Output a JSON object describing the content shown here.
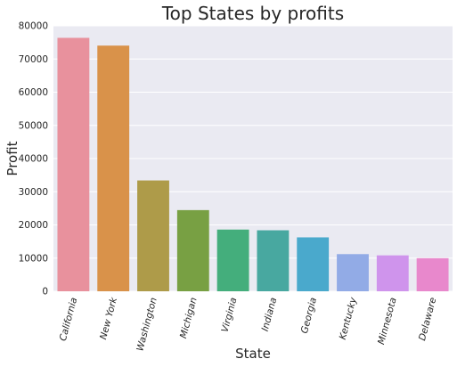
{
  "chart_data": {
    "type": "bar",
    "title": "Top States by profits",
    "xlabel": "State",
    "ylabel": "Profit",
    "categories": [
      "California",
      "New York",
      "Washington",
      "Michigan",
      "Virginia",
      "Indiana",
      "Georgia",
      "Kentucky",
      "Minnesota",
      "Delaware"
    ],
    "values": [
      76381,
      74039,
      33403,
      24463,
      18598,
      18383,
      16250,
      11200,
      10823,
      9977
    ],
    "colors": [
      "#e8919d",
      "#d9924a",
      "#ae9b49",
      "#78a043",
      "#44ae7c",
      "#48a8a0",
      "#4aa9cc",
      "#92abe6",
      "#cf94ec",
      "#e888cc"
    ],
    "ylim": [
      0,
      80000
    ],
    "yticks": [
      "0",
      "10000",
      "20000",
      "30000",
      "40000",
      "50000",
      "60000",
      "70000",
      "80000"
    ],
    "grid": true,
    "background": "#eaeaf2"
  }
}
